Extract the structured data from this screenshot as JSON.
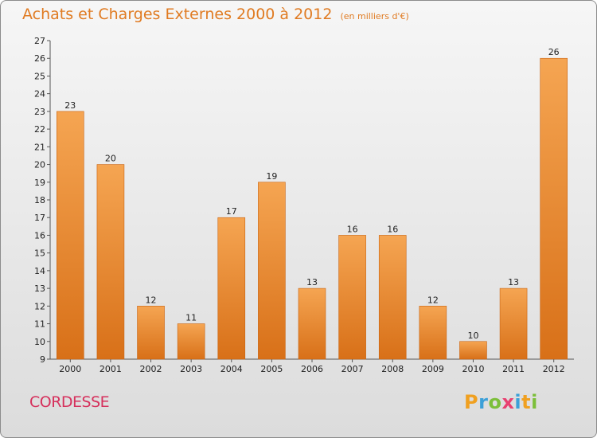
{
  "header": {
    "title": "Achats et Charges Externes 2000 à 2012",
    "unit": "(en milliers d'€)"
  },
  "commune": "CORDESSE",
  "logo": {
    "letters": [
      "P",
      "r",
      "o",
      "x",
      "i",
      "t",
      "i"
    ]
  },
  "chart_data": {
    "type": "bar",
    "title": "Achats et Charges Externes 2000 à 2012",
    "subtitle": "(en milliers d'€)",
    "categories": [
      "2000",
      "2001",
      "2002",
      "2003",
      "2004",
      "2005",
      "2006",
      "2007",
      "2008",
      "2009",
      "2010",
      "2011",
      "2012"
    ],
    "values": [
      23,
      20,
      12,
      11,
      17,
      19,
      13,
      16,
      16,
      12,
      10,
      13,
      26
    ],
    "ylim": [
      9,
      27
    ],
    "yticks": [
      9,
      10,
      11,
      12,
      13,
      14,
      15,
      16,
      17,
      18,
      19,
      20,
      21,
      22,
      23,
      24,
      25,
      26,
      27
    ],
    "grid": false,
    "colors": {
      "bar_top": "#f5a552",
      "bar_bottom": "#d87018",
      "bar_edge": "#c96412"
    }
  }
}
